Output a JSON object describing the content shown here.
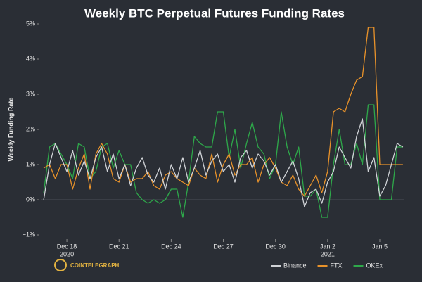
{
  "chart_data": {
    "type": "line",
    "title": "Weekly BTC Perpetual Futures Funding Rates",
    "y_label": "Weekly Funding Rate",
    "source": "COINTELEGRAPH",
    "x": [
      "2020-12-16T16:00",
      "2020-12-17T00:00",
      "2020-12-17T08:00",
      "2020-12-17T16:00",
      "2020-12-18T00:00",
      "2020-12-18T08:00",
      "2020-12-18T16:00",
      "2020-12-19T00:00",
      "2020-12-19T08:00",
      "2020-12-19T16:00",
      "2020-12-20T00:00",
      "2020-12-20T08:00",
      "2020-12-20T16:00",
      "2020-12-21T00:00",
      "2020-12-21T08:00",
      "2020-12-21T16:00",
      "2020-12-22T00:00",
      "2020-12-22T08:00",
      "2020-12-22T16:00",
      "2020-12-23T00:00",
      "2020-12-23T08:00",
      "2020-12-23T16:00",
      "2020-12-24T00:00",
      "2020-12-24T08:00",
      "2020-12-24T16:00",
      "2020-12-25T00:00",
      "2020-12-25T08:00",
      "2020-12-25T16:00",
      "2020-12-26T00:00",
      "2020-12-26T08:00",
      "2020-12-26T16:00",
      "2020-12-27T00:00",
      "2020-12-27T08:00",
      "2020-12-27T16:00",
      "2020-12-28T00:00",
      "2020-12-28T08:00",
      "2020-12-28T16:00",
      "2020-12-29T00:00",
      "2020-12-29T08:00",
      "2020-12-29T16:00",
      "2020-12-30T00:00",
      "2020-12-30T08:00",
      "2020-12-30T16:00",
      "2020-12-31T00:00",
      "2020-12-31T08:00",
      "2020-12-31T16:00",
      "2021-01-01T00:00",
      "2021-01-01T08:00",
      "2021-01-01T16:00",
      "2021-01-02T00:00",
      "2021-01-02T08:00",
      "2021-01-02T16:00",
      "2021-01-03T00:00",
      "2021-01-03T08:00",
      "2021-01-03T16:00",
      "2021-01-04T00:00",
      "2021-01-04T08:00",
      "2021-01-04T16:00",
      "2021-01-05T00:00",
      "2021-01-05T08:00",
      "2021-01-05T16:00",
      "2021-01-06T00:00",
      "2021-01-06T08:00"
    ],
    "series": [
      {
        "name": "Binance",
        "color": "#cfd2d6",
        "values": [
          0.0,
          1.0,
          1.6,
          1.2,
          0.8,
          1.4,
          0.7,
          1.1,
          0.6,
          1.2,
          1.5,
          0.8,
          1.3,
          0.6,
          1.0,
          0.4,
          0.9,
          1.2,
          0.7,
          0.5,
          0.9,
          0.3,
          1.0,
          0.6,
          1.2,
          0.5,
          0.9,
          1.4,
          0.7,
          1.1,
          1.3,
          0.8,
          1.0,
          0.5,
          1.2,
          1.4,
          0.9,
          1.3,
          1.1,
          0.7,
          1.0,
          0.5,
          0.8,
          1.1,
          0.6,
          -0.2,
          0.2,
          0.3,
          -0.1,
          0.5,
          0.8,
          1.5,
          1.2,
          0.9,
          1.8,
          2.3,
          0.8,
          1.2,
          0.1,
          0.4,
          1.0,
          1.6,
          1.5
        ]
      },
      {
        "name": "FTX",
        "color": "#e8922a",
        "values": [
          0.9,
          1.0,
          0.6,
          1.0,
          1.0,
          0.3,
          0.9,
          1.3,
          0.3,
          1.3,
          1.6,
          1.3,
          0.6,
          0.5,
          1.0,
          0.5,
          0.6,
          0.6,
          0.8,
          0.4,
          0.3,
          0.7,
          0.8,
          0.6,
          0.5,
          0.4,
          0.9,
          0.7,
          0.6,
          1.3,
          0.5,
          1.0,
          1.3,
          0.7,
          1.0,
          1.0,
          1.2,
          0.5,
          1.0,
          1.2,
          0.9,
          0.5,
          0.4,
          0.7,
          0.3,
          0.1,
          0.4,
          0.7,
          0.2,
          0.8,
          2.5,
          2.6,
          2.5,
          3.0,
          3.4,
          3.5,
          4.9,
          4.9,
          1.0,
          1.0,
          1.0,
          1.0,
          1.0
        ]
      },
      {
        "name": "OKEx",
        "color": "#2ea84a",
        "values": [
          0.2,
          1.5,
          1.6,
          1.3,
          1.0,
          0.6,
          1.6,
          1.5,
          0.6,
          0.8,
          1.5,
          1.6,
          0.9,
          1.4,
          1.0,
          1.0,
          0.2,
          0.0,
          -0.1,
          0.0,
          -0.1,
          0.0,
          0.3,
          0.3,
          -0.5,
          0.5,
          1.8,
          1.6,
          1.5,
          1.5,
          2.5,
          2.5,
          1.2,
          2.0,
          0.9,
          1.6,
          2.2,
          1.5,
          1.3,
          0.6,
          1.0,
          2.5,
          1.5,
          1.0,
          1.5,
          0.1,
          0.1,
          0.3,
          -0.5,
          -0.5,
          1.0,
          2.0,
          1.0,
          1.0,
          1.6,
          1.0,
          2.7,
          2.7,
          0.0,
          0.0,
          0.0,
          1.5,
          1.5
        ]
      }
    ],
    "xlim": [
      "2020-12-16T12:00",
      "2021-01-06T10:00"
    ],
    "xticks": [
      {
        "value": "2020-12-18",
        "label": "Dec 18"
      },
      {
        "value": "2020-12-21",
        "label": "Dec 21"
      },
      {
        "value": "2020-12-24",
        "label": "Dec 24"
      },
      {
        "value": "2020-12-27",
        "label": "Dec 27"
      },
      {
        "value": "2020-12-30",
        "label": "Dec 30"
      },
      {
        "value": "2021-01-02",
        "label": "Jan 2"
      },
      {
        "value": "2021-01-05",
        "label": "Jan 5"
      }
    ],
    "xtick_sublabels": [
      {
        "value": "2020-12-18",
        "label": "2020"
      },
      {
        "value": "2021-01-02",
        "label": "2021"
      }
    ],
    "ylim": [
      -1.12,
      5.12
    ],
    "yticks": [
      {
        "value": -1,
        "label": "−1%"
      },
      {
        "value": 0,
        "label": "0%"
      },
      {
        "value": 1,
        "label": "1%"
      },
      {
        "value": 2,
        "label": "2%"
      },
      {
        "value": 3,
        "label": "3%"
      },
      {
        "value": 4,
        "label": "4%"
      },
      {
        "value": 5,
        "label": "5%"
      }
    ],
    "background": "#2a2e35",
    "legend": "bottom-right"
  }
}
